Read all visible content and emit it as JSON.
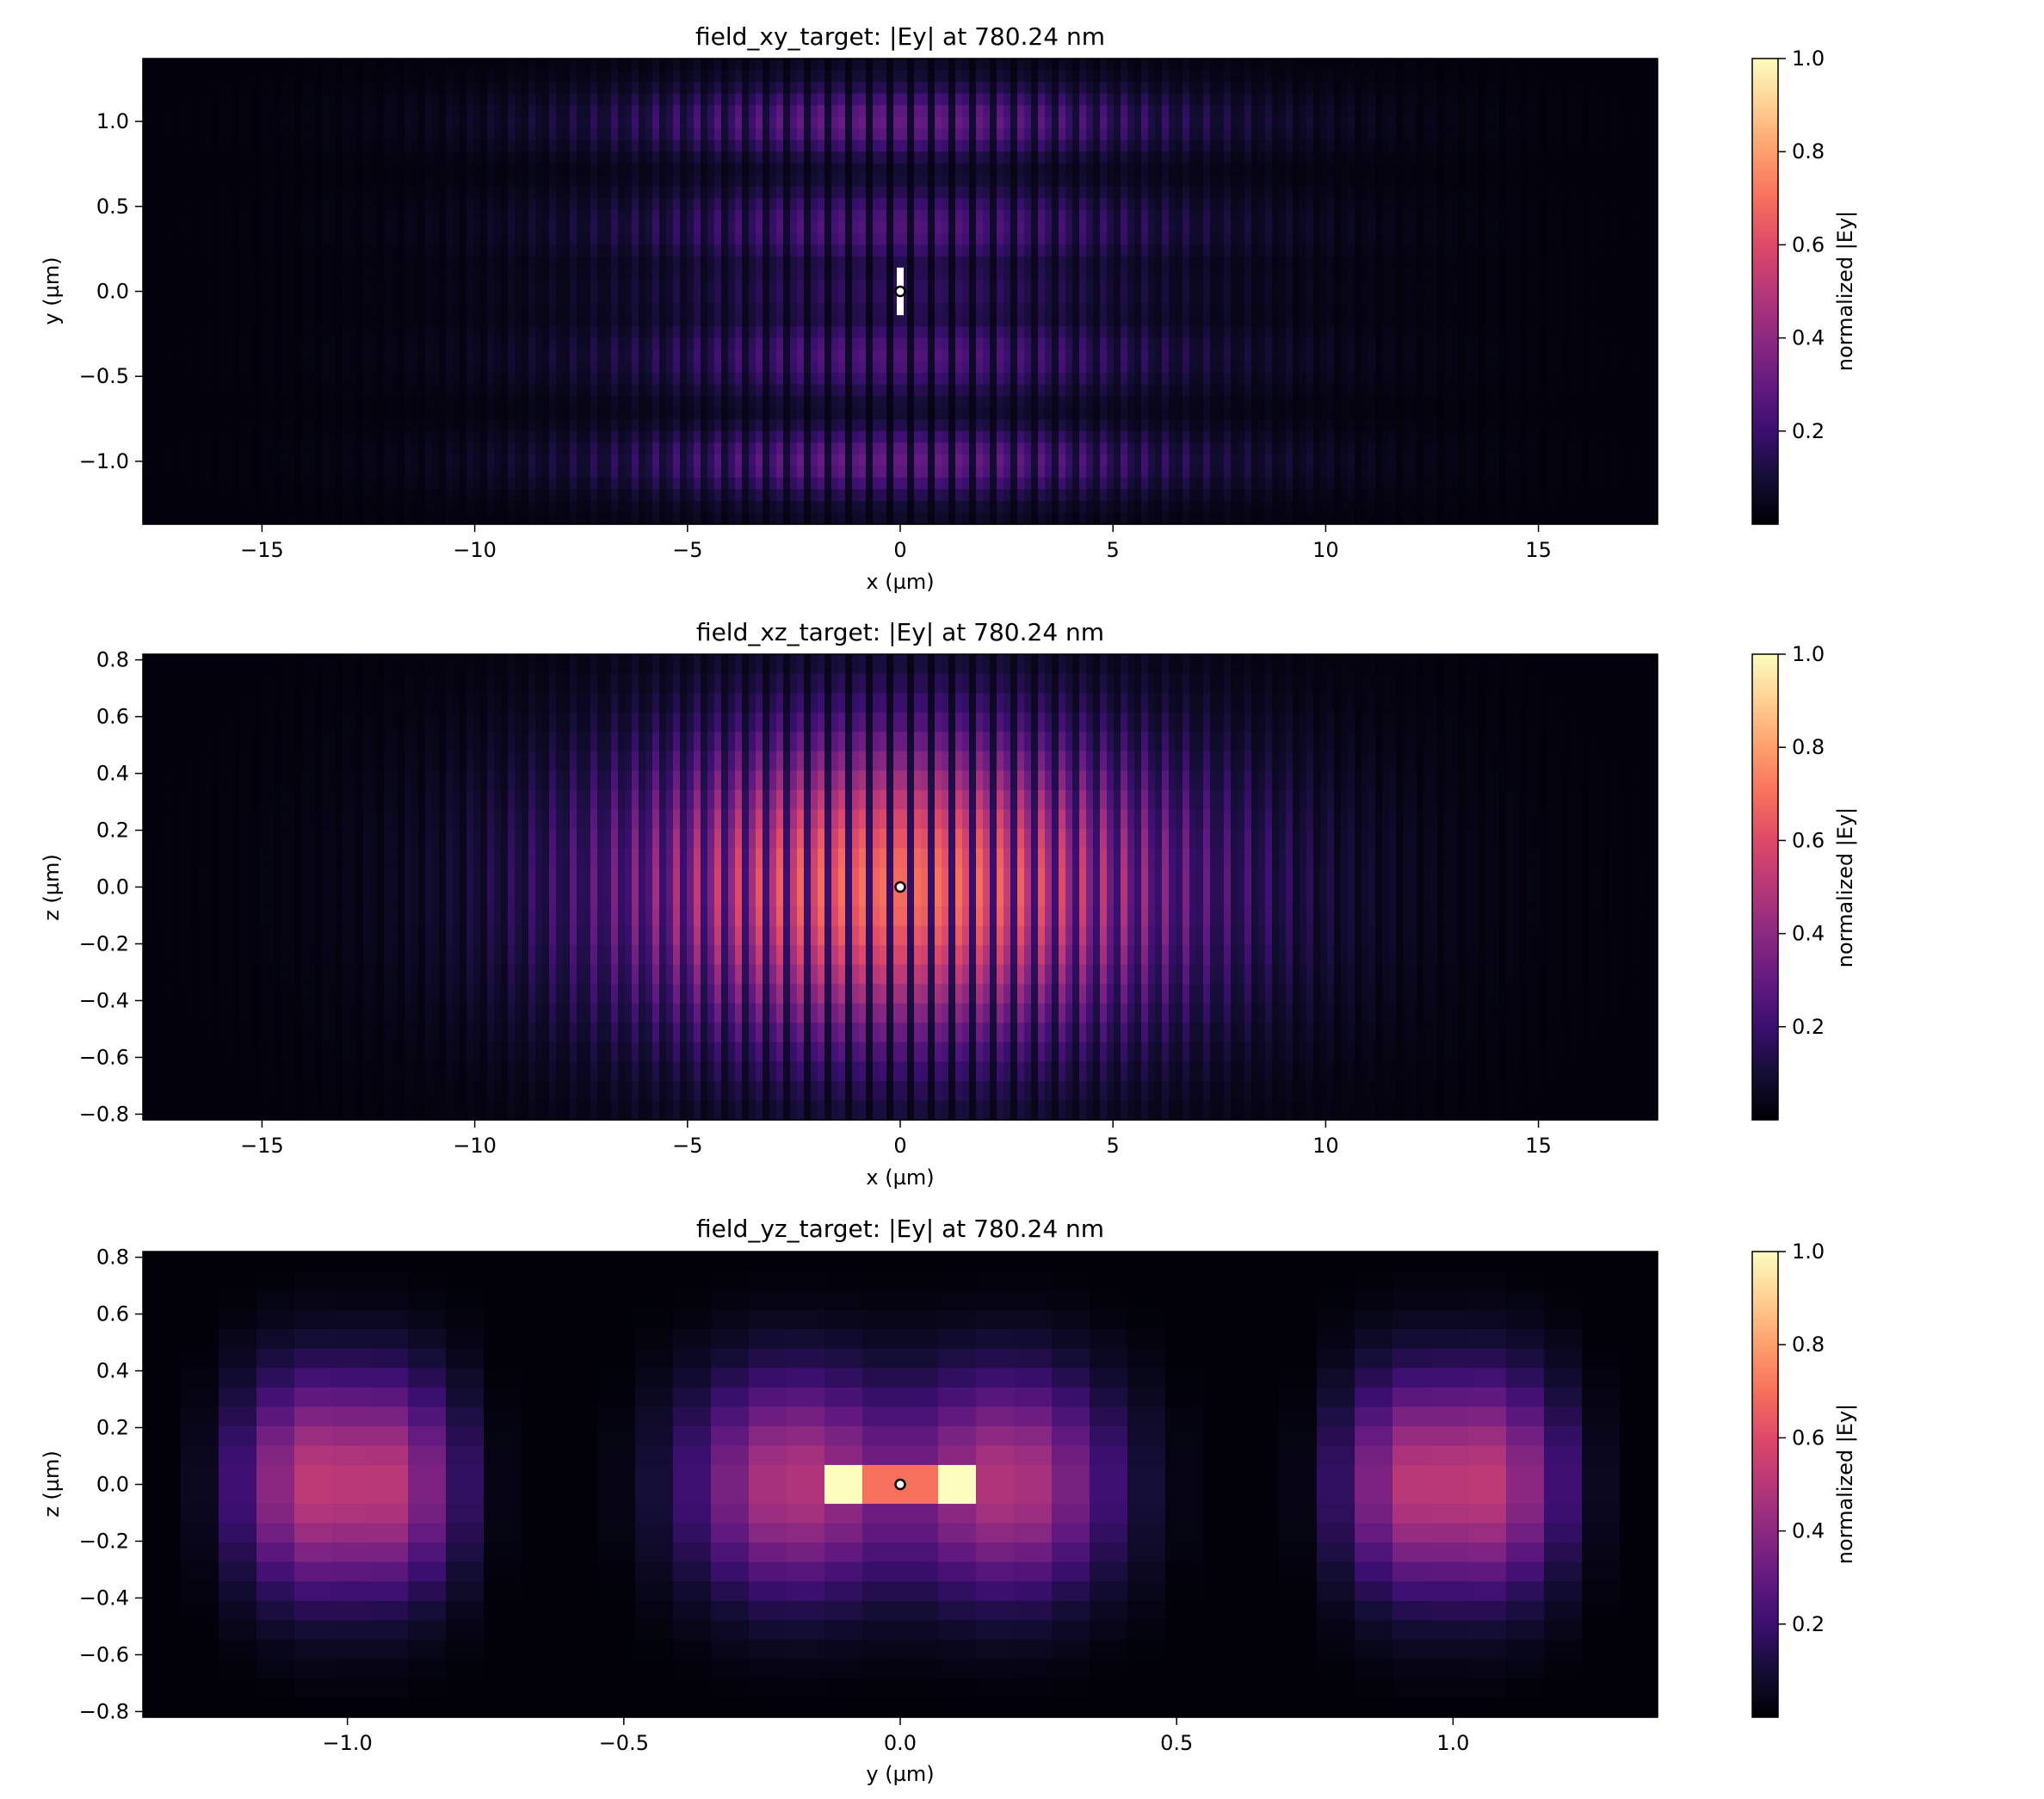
{
  "colorbar": {
    "label": "normalized |Ey|",
    "ticks": [
      "0.2",
      "0.4",
      "0.6",
      "0.8",
      "1.0"
    ],
    "range": [
      0,
      1
    ],
    "colormap": [
      "#000004",
      "#140e36",
      "#3b0f70",
      "#641a80",
      "#8c2981",
      "#b73779",
      "#de4968",
      "#f7705c",
      "#fe9f6d",
      "#fecf92",
      "#fcfdbf"
    ]
  },
  "chart_data": [
    {
      "type": "heatmap",
      "title": "field_xy_target: |Ey| at 780.24 nm",
      "xlabel": "x (µm)",
      "ylabel": "y (µm)",
      "xlim": [
        -17.8,
        17.8
      ],
      "ylim": [
        -1.37,
        1.37
      ],
      "xticks": [
        -15,
        -10,
        -5,
        0,
        5,
        10,
        15
      ],
      "xtick_labels": [
        "−15",
        "−10",
        "−5",
        "0",
        "5",
        "10",
        "15"
      ],
      "yticks": [
        -1.0,
        -0.5,
        0.0,
        0.5,
        1.0
      ],
      "ytick_labels": [
        "−1.0",
        "−0.5",
        "0.0",
        "0.5",
        "1.0"
      ],
      "grid": false,
      "envelope": {
        "x_center": 0,
        "x_sigma": 5.6,
        "fringe_period": 0.48,
        "peak_level": 0.34,
        "y_bands": [
          {
            "center": 1.0,
            "width": 0.14,
            "level": 1.0
          },
          {
            "center": 0.66,
            "width": 0.1,
            "level": 0.1
          },
          {
            "center": 0.38,
            "width": 0.16,
            "level": 0.8
          },
          {
            "center": 0.0,
            "width": 0.16,
            "level": 0.45
          },
          {
            "center": -0.38,
            "width": 0.16,
            "level": 0.8
          },
          {
            "center": -0.66,
            "width": 0.1,
            "level": 0.1
          },
          {
            "center": -1.0,
            "width": 0.14,
            "level": 1.0
          }
        ]
      },
      "marker": {
        "x": 0,
        "y": 0
      },
      "marker_bar": {
        "x": 0,
        "y_min": -0.14,
        "y_max": 0.14
      }
    },
    {
      "type": "heatmap",
      "title": "field_xz_target: |Ey| at 780.24 nm",
      "xlabel": "x (µm)",
      "ylabel": "z (µm)",
      "xlim": [
        -17.8,
        17.8
      ],
      "ylim": [
        -0.82,
        0.82
      ],
      "xticks": [
        -15,
        -10,
        -5,
        0,
        5,
        10,
        15
      ],
      "xtick_labels": [
        "−15",
        "−10",
        "−5",
        "0",
        "5",
        "10",
        "15"
      ],
      "yticks": [
        -0.8,
        -0.6,
        -0.4,
        -0.2,
        0.0,
        0.2,
        0.4,
        0.6,
        0.8
      ],
      "ytick_labels": [
        "−0.8",
        "−0.6",
        "−0.4",
        "−0.2",
        "0.0",
        "0.2",
        "0.4",
        "0.6",
        "0.8"
      ],
      "grid": false,
      "envelope": {
        "x_center": 0,
        "x_sigma": 5.2,
        "fringe_period": 0.48,
        "peak_level": 0.8,
        "z_sigma": 0.4
      },
      "marker": {
        "x": 0,
        "y": 0
      }
    },
    {
      "type": "heatmap",
      "title": "field_yz_target: |Ey| at 780.24 nm",
      "xlabel": "y (µm)",
      "ylabel": "z (µm)",
      "xlim": [
        -1.37,
        1.37
      ],
      "ylim": [
        -0.82,
        0.82
      ],
      "xticks": [
        -1.0,
        -0.5,
        0.0,
        0.5,
        1.0
      ],
      "xtick_labels": [
        "−1.0",
        "−0.5",
        "0.0",
        "0.5",
        "1.0"
      ],
      "yticks": [
        -0.8,
        -0.6,
        -0.4,
        -0.2,
        0.0,
        0.2,
        0.4,
        0.6,
        0.8
      ],
      "ytick_labels": [
        "−0.8",
        "−0.6",
        "−0.4",
        "−0.2",
        "0.0",
        "0.2",
        "0.4",
        "0.6",
        "0.8"
      ],
      "grid": false,
      "lobes": [
        {
          "center": -1.0,
          "peak": -0.93,
          "half_width": 0.3,
          "level": 0.55
        },
        {
          "center": 0.0,
          "peak": 0.24,
          "half_width": 0.55,
          "level": 0.6
        },
        {
          "center": 1.0,
          "peak": 0.93,
          "half_width": 0.3,
          "level": 0.55
        }
      ],
      "hotspots": [
        {
          "y_min": -0.14,
          "y_max": -0.047,
          "z_min": -0.06,
          "z_max": 0.06,
          "level": 1.0
        },
        {
          "y_min": -0.047,
          "y_max": 0.047,
          "z_min": -0.06,
          "z_max": 0.06,
          "level": 0.7
        },
        {
          "y_min": 0.047,
          "y_max": 0.14,
          "z_min": -0.06,
          "z_max": 0.06,
          "level": 1.0
        }
      ],
      "marker": {
        "x": 0,
        "y": 0
      }
    }
  ]
}
